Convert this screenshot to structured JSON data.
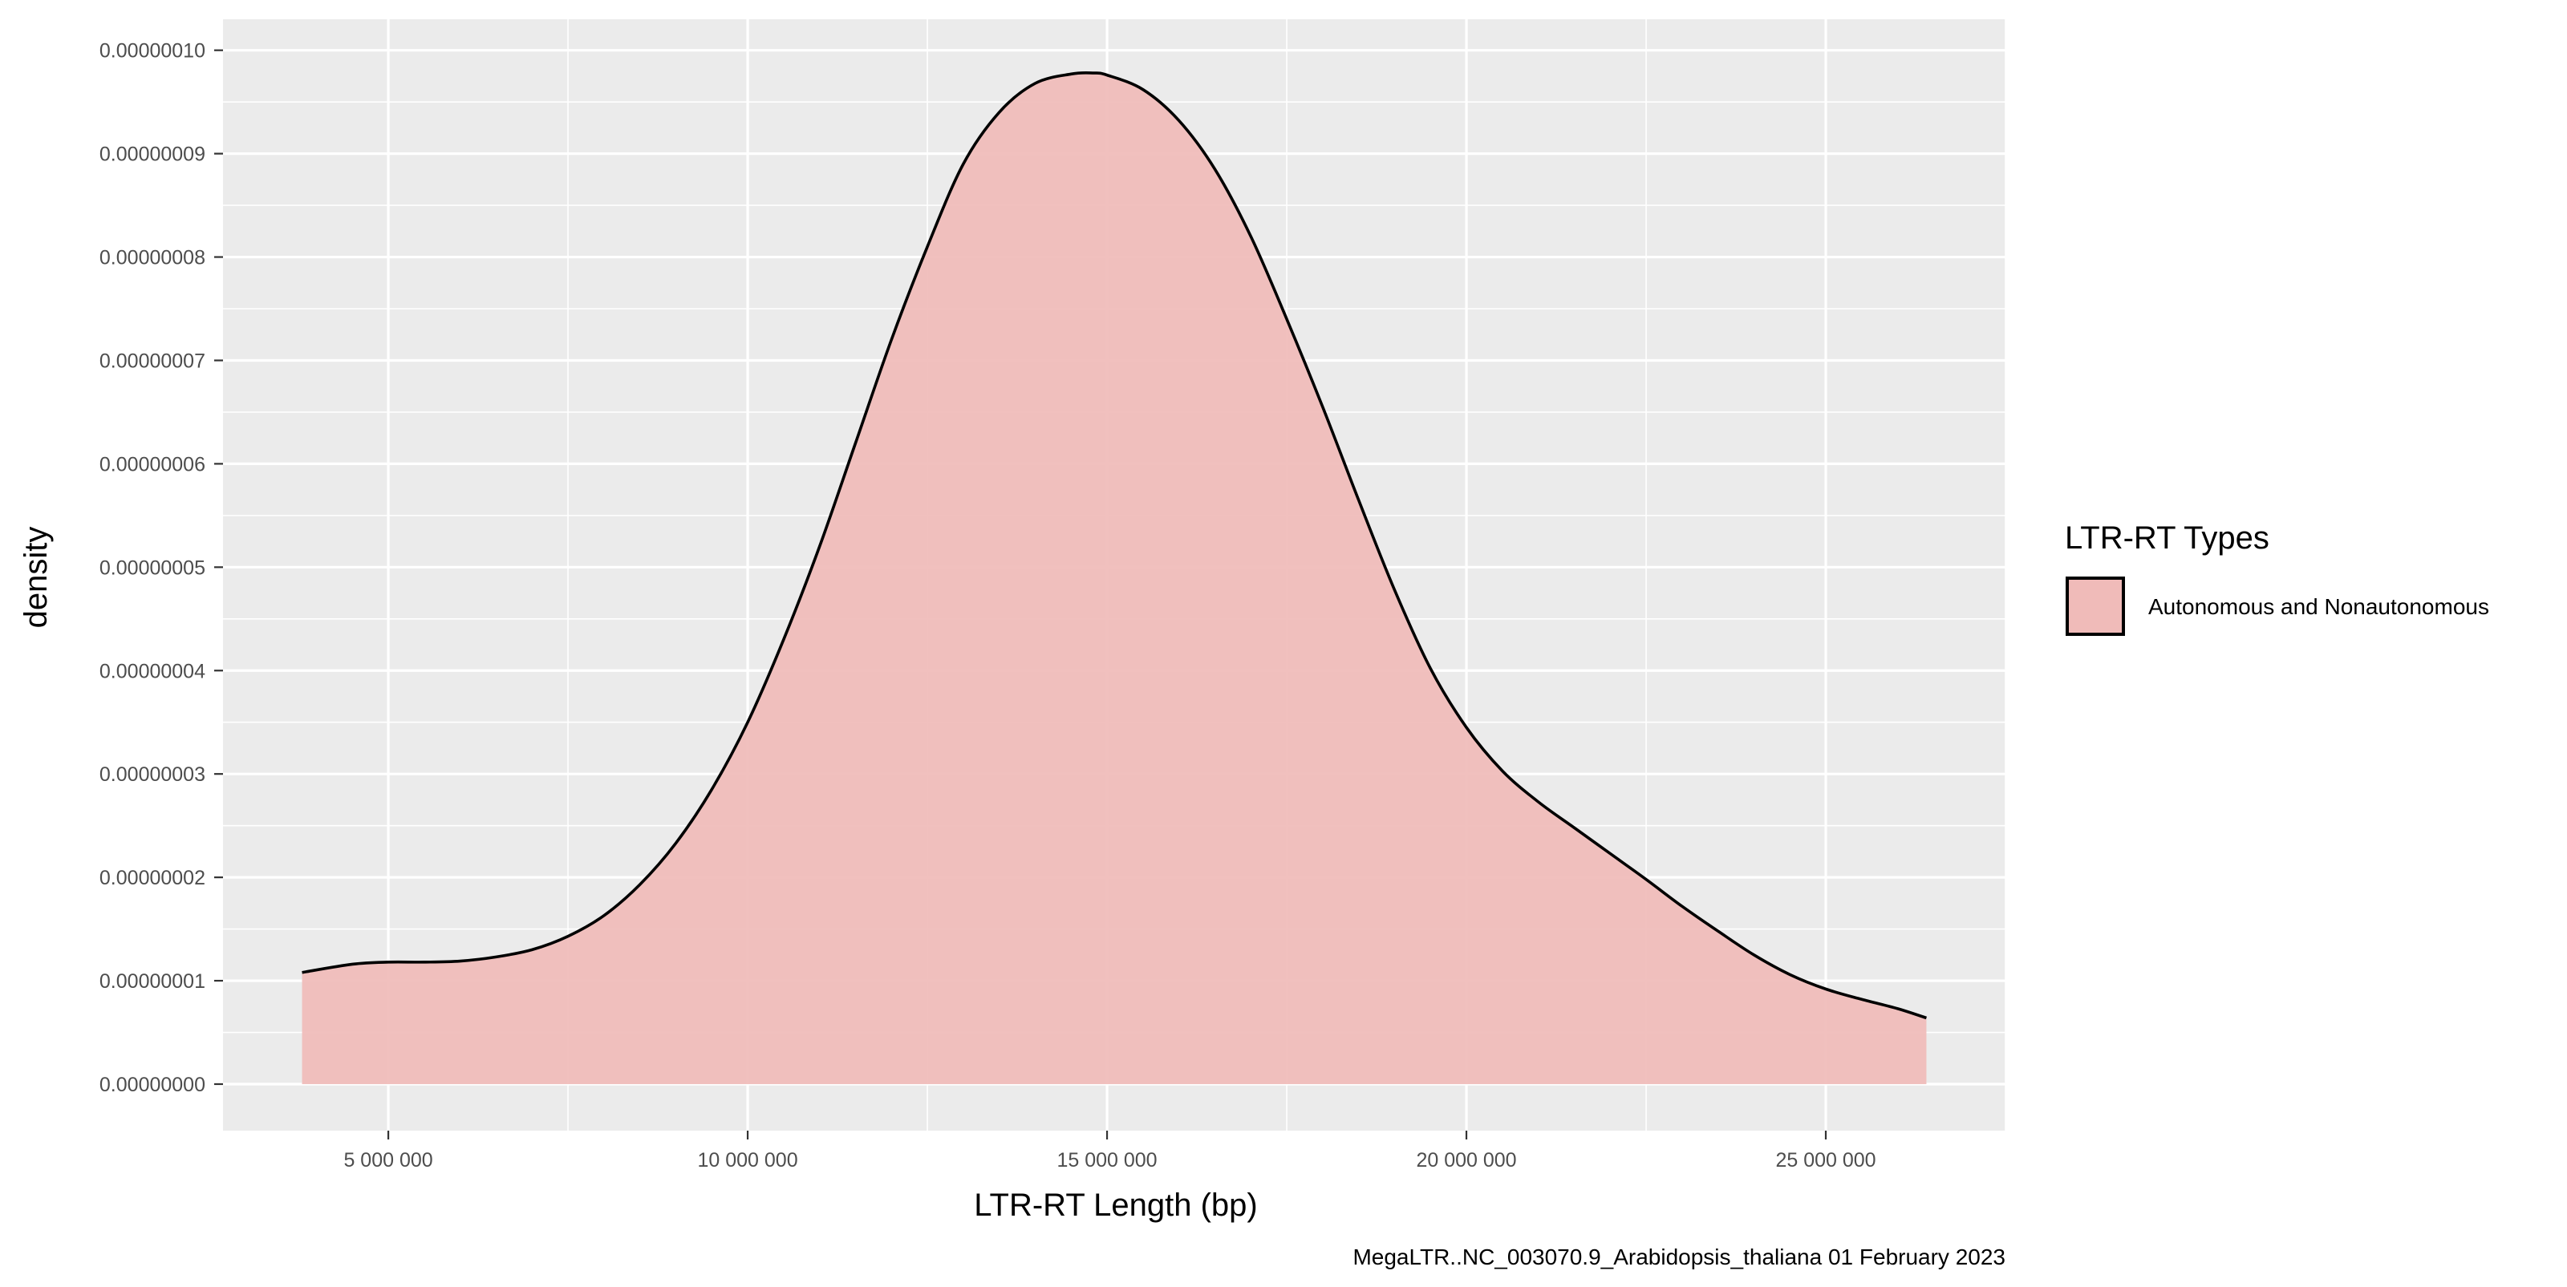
{
  "chart_data": {
    "type": "area",
    "title": "",
    "xlabel": "LTR-RT Length (bp)",
    "ylabel": "density",
    "caption": "MegaLTR..NC_003070.9_Arabidopsis_thaliana 01 February 2023",
    "xlim": [
      2700000,
      27500000
    ],
    "ylim": [
      -4.5e-09,
      1.03e-07
    ],
    "x_ticks": [
      5000000,
      10000000,
      15000000,
      20000000,
      25000000
    ],
    "x_tick_labels": [
      "5 000 000",
      "10 000 000",
      "15 000 000",
      "20 000 000",
      "25 000 000"
    ],
    "y_ticks": [
      0,
      1e-08,
      2e-08,
      3e-08,
      4e-08,
      5e-08,
      6e-08,
      7e-08,
      8e-08,
      9e-08,
      1e-07
    ],
    "y_tick_labels": [
      "0.00000000",
      "0.00000001",
      "0.00000002",
      "0.00000003",
      "0.00000004",
      "0.00000005",
      "0.00000006",
      "0.00000007",
      "0.00000008",
      "0.00000009",
      "0.00000010"
    ],
    "grid": true,
    "legend": {
      "title": "LTR-RT Types",
      "position": "right",
      "entries": [
        {
          "label": "Autonomous and Nonautonomous",
          "fill": "#f0bbb9",
          "stroke": "#000000"
        }
      ]
    },
    "series": [
      {
        "name": "Autonomous and Nonautonomous",
        "fill": "#f0bbb9",
        "line": "#000000",
        "x": [
          3800000,
          4500000,
          5000000,
          5500000,
          6000000,
          6500000,
          7000000,
          7500000,
          8000000,
          8500000,
          9000000,
          9500000,
          10000000,
          10500000,
          11000000,
          11500000,
          12000000,
          12500000,
          13000000,
          13500000,
          14000000,
          14500000,
          14800000,
          15000000,
          15500000,
          16000000,
          16500000,
          17000000,
          17500000,
          18000000,
          18500000,
          19000000,
          19500000,
          20000000,
          20500000,
          21000000,
          21500000,
          22000000,
          22500000,
          23000000,
          23500000,
          24000000,
          24500000,
          25000000,
          25500000,
          26000000,
          26400000
        ],
        "y": [
          1.08e-08,
          1.16e-08,
          1.18e-08,
          1.18e-08,
          1.19e-08,
          1.23e-08,
          1.3e-08,
          1.43e-08,
          1.63e-08,
          1.93e-08,
          2.33e-08,
          2.85e-08,
          3.5e-08,
          4.3e-08,
          5.2e-08,
          6.2e-08,
          7.2e-08,
          8.1e-08,
          8.9e-08,
          9.4e-08,
          9.68e-08,
          9.77e-08,
          9.78e-08,
          9.76e-08,
          9.62e-08,
          9.32e-08,
          8.85e-08,
          8.2e-08,
          7.4e-08,
          6.55e-08,
          5.65e-08,
          4.78e-08,
          4.02e-08,
          3.45e-08,
          3.03e-08,
          2.73e-08,
          2.48e-08,
          2.23e-08,
          1.98e-08,
          1.72e-08,
          1.48e-08,
          1.25e-08,
          1.06e-08,
          9.2e-09,
          8.2e-09,
          7.3e-09,
          6.4e-09
        ]
      }
    ]
  }
}
